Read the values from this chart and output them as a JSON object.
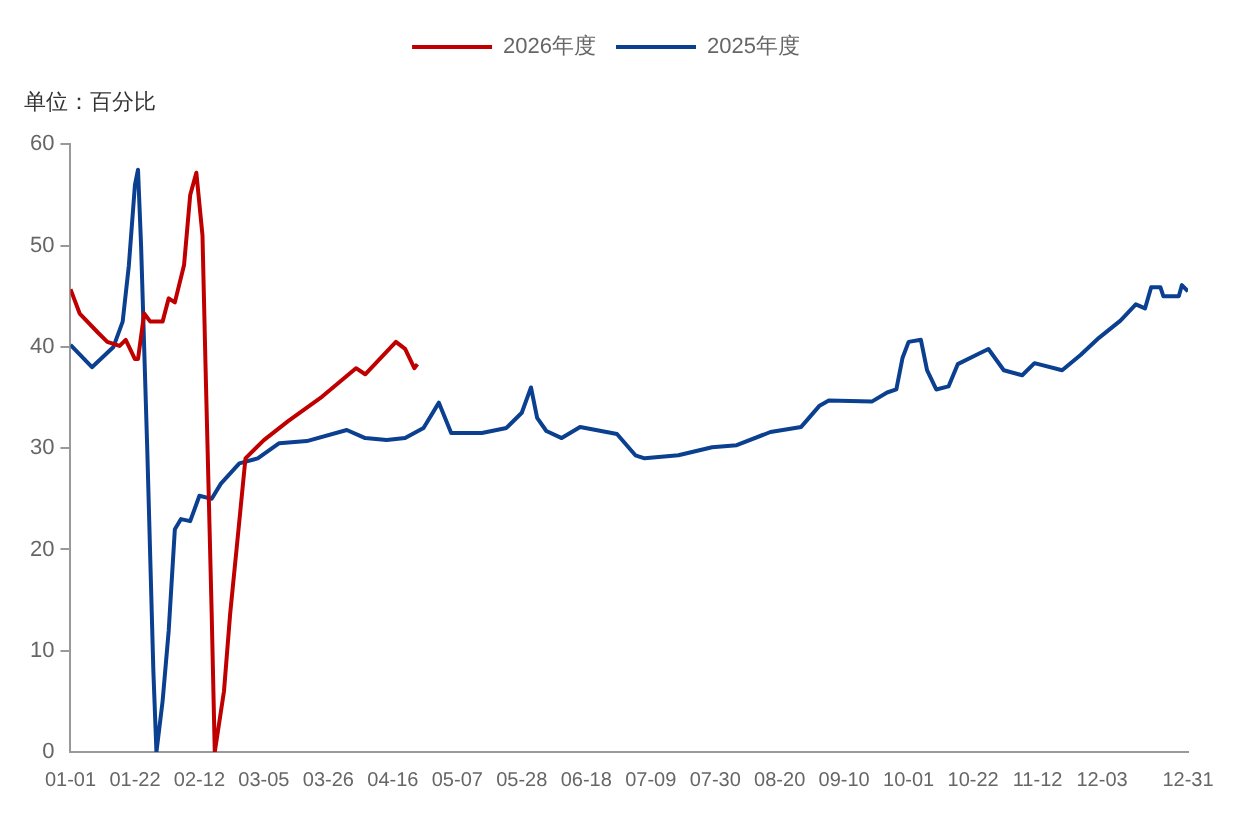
{
  "chart_data": {
    "type": "line",
    "subtitle": "单位：百分比",
    "legend": "top",
    "grid": false,
    "marker": "none",
    "line_style": "solid",
    "xlim": [
      "--01-01",
      "--12-31"
    ],
    "xticks": [
      {
        "value": "--01-01",
        "label": "01-01"
      },
      {
        "value": "--01-22",
        "label": "01-22"
      },
      {
        "value": "--02-12",
        "label": "02-12"
      },
      {
        "value": "--03-05",
        "label": "03-05"
      },
      {
        "value": "--03-26",
        "label": "03-26"
      },
      {
        "value": "--04-16",
        "label": "04-16"
      },
      {
        "value": "--05-07",
        "label": "05-07"
      },
      {
        "value": "--05-28",
        "label": "05-28"
      },
      {
        "value": "--06-18",
        "label": "06-18"
      },
      {
        "value": "--07-09",
        "label": "07-09"
      },
      {
        "value": "--07-30",
        "label": "07-30"
      },
      {
        "value": "--08-20",
        "label": "08-20"
      },
      {
        "value": "--09-10",
        "label": "09-10"
      },
      {
        "value": "--10-01",
        "label": "10-01"
      },
      {
        "value": "--10-22",
        "label": "10-22"
      },
      {
        "value": "--11-12",
        "label": "11-12"
      },
      {
        "value": "--12-03",
        "label": "12-03"
      },
      {
        "value": "--12-31",
        "label": "12-31"
      }
    ],
    "ylim": [
      0,
      60
    ],
    "yticks": [
      0,
      10,
      20,
      30,
      40,
      50,
      60
    ],
    "series": [
      {
        "name": "2026年度",
        "color": "#c00000",
        "x": [
          "--01-01",
          "--01-04",
          "--01-10",
          "--01-13",
          "--01-17",
          "--01-19",
          "--01-22",
          "--01-23",
          "--01-25",
          "--01-27",
          "--01-31",
          "--02-02",
          "--02-04",
          "--02-07",
          "--02-09",
          "--02-11",
          "--02-13",
          "--02-14",
          "--02-16",
          "--02-17",
          "--02-20",
          "--02-22",
          "--02-25",
          "--02-27",
          "--03-05",
          "--03-13",
          "--03-24",
          "--04-04",
          "--04-07",
          "--04-17",
          "--04-20",
          "--04-23",
          "--04-24"
        ],
        "values": [
          45.7,
          43.3,
          41.4,
          40.5,
          40.1,
          40.7,
          38.8,
          38.8,
          43.3,
          42.5,
          42.5,
          44.8,
          44.4,
          48.1,
          55,
          57.2,
          51,
          38,
          13.6,
          0,
          6,
          13.6,
          22.8,
          29,
          30.8,
          32.7,
          35.1,
          37.9,
          37.3,
          40.5,
          39.8,
          37.9,
          38.3
        ]
      },
      {
        "name": "2025年度",
        "color": "#0b3f8f",
        "x": [
          "--01-01",
          "--01-08",
          "--01-15",
          "--01-18",
          "--01-20",
          "--01-22",
          "--01-23",
          "--01-24",
          "--01-26",
          "--01-28",
          "--01-29",
          "--01-31",
          "--02-02",
          "--02-04",
          "--02-06",
          "--02-09",
          "--02-12",
          "--02-16",
          "--02-19",
          "--02-25",
          "--03-03",
          "--03-10",
          "--03-19",
          "--04-01",
          "--04-07",
          "--04-14",
          "--04-20",
          "--04-26",
          "--05-01",
          "--05-05",
          "--05-15",
          "--05-23",
          "--05-28",
          "--05-31",
          "--06-02",
          "--06-05",
          "--06-10",
          "--06-16",
          "--06-28",
          "--07-04",
          "--07-07",
          "--07-18",
          "--07-29",
          "--08-06",
          "--08-17",
          "--08-27",
          "--09-02",
          "--09-05",
          "--09-19",
          "--09-24",
          "--09-27",
          "--09-29",
          "--10-01",
          "--10-05",
          "--10-07",
          "--10-10",
          "--10-14",
          "--10-17",
          "--10-23",
          "--10-27",
          "--11-01",
          "--11-07",
          "--11-11",
          "--11-20",
          "--11-26",
          "--12-02",
          "--12-09",
          "--12-14",
          "--12-17",
          "--12-19",
          "--12-22",
          "--12-23",
          "--12-28",
          "--12-29",
          "--12-31"
        ],
        "values": [
          40.2,
          38,
          40,
          42.5,
          48,
          56,
          57.5,
          50,
          30,
          8,
          0,
          5,
          12,
          22,
          23,
          22.8,
          25.3,
          25,
          26.5,
          28.5,
          29,
          30.5,
          30.7,
          31.8,
          31,
          30.8,
          31,
          32,
          34.5,
          31.5,
          31.5,
          32,
          33.5,
          36,
          33,
          31.7,
          31,
          32.1,
          31.4,
          29.3,
          29,
          29.3,
          30.1,
          30.3,
          31.6,
          32.1,
          34.2,
          34.7,
          34.6,
          35.5,
          35.8,
          38.9,
          40.5,
          40.7,
          37.7,
          35.8,
          36.1,
          38.3,
          39.2,
          39.8,
          37.7,
          37.2,
          38.4,
          37.7,
          39.2,
          40.9,
          42.6,
          44.2,
          43.8,
          45.9,
          45.9,
          45,
          45,
          46.1,
          45.5
        ]
      }
    ]
  }
}
